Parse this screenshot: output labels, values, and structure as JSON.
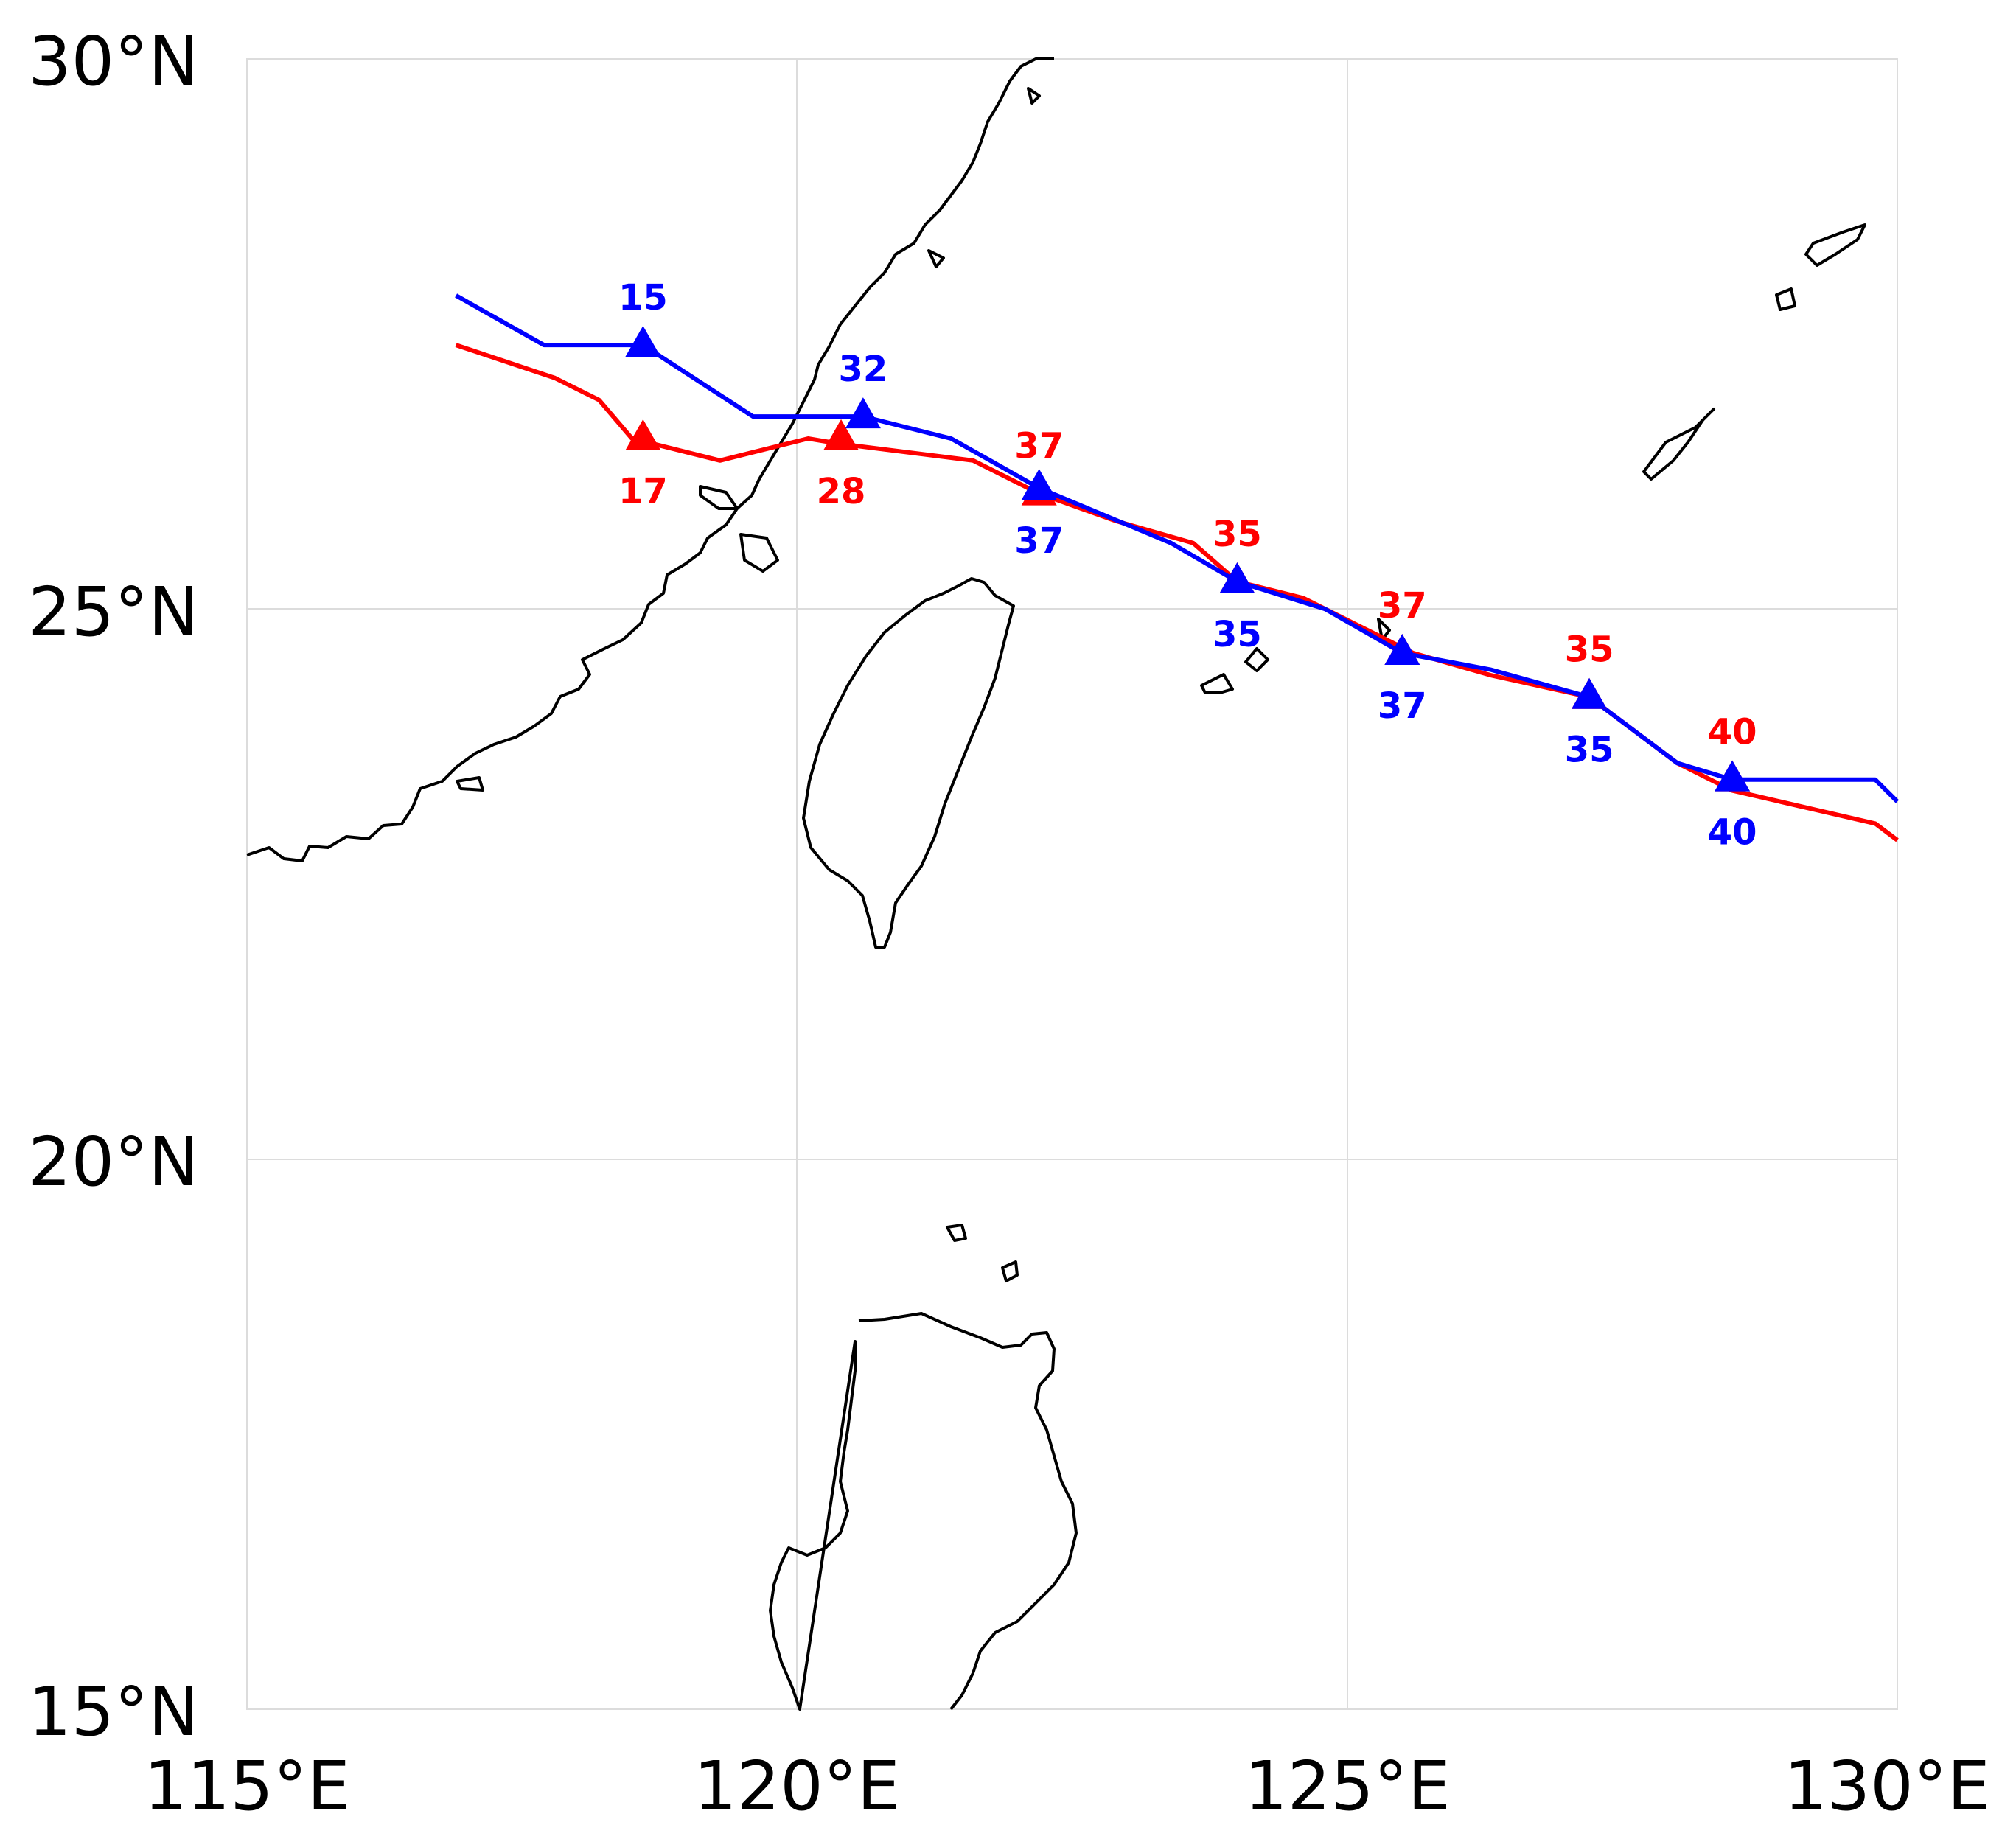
{
  "map": {
    "x_ticks": [
      "115°E",
      "120°E",
      "125°E",
      "130°E"
    ],
    "y_ticks": [
      "30°N",
      "25°N",
      "20°N",
      "15°N"
    ],
    "lon_range": [
      115,
      130
    ],
    "lat_range": [
      15,
      30
    ],
    "gridlines": true
  },
  "chart_data": {
    "type": "line",
    "xlim": [
      115,
      130
    ],
    "ylim": [
      15,
      30
    ],
    "series": [
      {
        "color": "#ff0000",
        "marker": "triangle",
        "label_position": "alternating",
        "track": [
          [
            116.9,
            27.4
          ],
          [
            117.8,
            27.1
          ],
          [
            118.2,
            26.9
          ],
          [
            118.5,
            26.55
          ],
          [
            119.3,
            26.35
          ],
          [
            120.1,
            26.55
          ],
          [
            120.4,
            26.5
          ],
          [
            121.6,
            26.35
          ],
          [
            122.2,
            26.05
          ],
          [
            122.9,
            25.8
          ],
          [
            123.6,
            25.6
          ],
          [
            124.0,
            25.25
          ],
          [
            124.6,
            25.1
          ],
          [
            125.6,
            24.6
          ],
          [
            126.3,
            24.4
          ],
          [
            127.2,
            24.2
          ],
          [
            128.0,
            23.6
          ],
          [
            128.5,
            23.35
          ],
          [
            129.8,
            23.05
          ],
          [
            130.0,
            22.9
          ]
        ],
        "points": [
          {
            "lon": 118.6,
            "lat": 26.55,
            "label": "17",
            "label_pos": "below"
          },
          {
            "lon": 120.4,
            "lat": 26.55,
            "label": "28",
            "label_pos": "below"
          },
          {
            "lon": 122.2,
            "lat": 26.05,
            "label": "37",
            "label_pos": "above"
          },
          {
            "lon": 124.0,
            "lat": 25.25,
            "label": "35",
            "label_pos": "above"
          },
          {
            "lon": 125.5,
            "lat": 24.6,
            "label": "37",
            "label_pos": "above"
          },
          {
            "lon": 127.2,
            "lat": 24.2,
            "label": "35",
            "label_pos": "above"
          },
          {
            "lon": 128.5,
            "lat": 23.45,
            "label": "40",
            "label_pos": "above"
          }
        ]
      },
      {
        "color": "#0000ff",
        "marker": "triangle",
        "label_position": "alternating",
        "track": [
          [
            116.9,
            27.85
          ],
          [
            117.7,
            27.4
          ],
          [
            118.6,
            27.4
          ],
          [
            119.6,
            26.75
          ],
          [
            120.6,
            26.75
          ],
          [
            121.4,
            26.55
          ],
          [
            122.2,
            26.1
          ],
          [
            123.4,
            25.6
          ],
          [
            124.0,
            25.25
          ],
          [
            124.8,
            25.0
          ],
          [
            125.5,
            24.6
          ],
          [
            126.3,
            24.45
          ],
          [
            127.2,
            24.2
          ],
          [
            128.0,
            23.6
          ],
          [
            128.5,
            23.45
          ],
          [
            129.8,
            23.45
          ],
          [
            130.0,
            23.25
          ]
        ],
        "points": [
          {
            "lon": 118.6,
            "lat": 27.4,
            "label": "15",
            "label_pos": "above"
          },
          {
            "lon": 120.6,
            "lat": 26.75,
            "label": "32",
            "label_pos": "above"
          },
          {
            "lon": 122.2,
            "lat": 26.1,
            "label": "37",
            "label_pos": "below"
          },
          {
            "lon": 124.0,
            "lat": 25.25,
            "label": "35",
            "label_pos": "below"
          },
          {
            "lon": 125.5,
            "lat": 24.6,
            "label": "37",
            "label_pos": "below"
          },
          {
            "lon": 127.2,
            "lat": 24.2,
            "label": "35",
            "label_pos": "below"
          },
          {
            "lon": 128.5,
            "lat": 23.45,
            "label": "40",
            "label_pos": "below"
          }
        ]
      }
    ]
  }
}
